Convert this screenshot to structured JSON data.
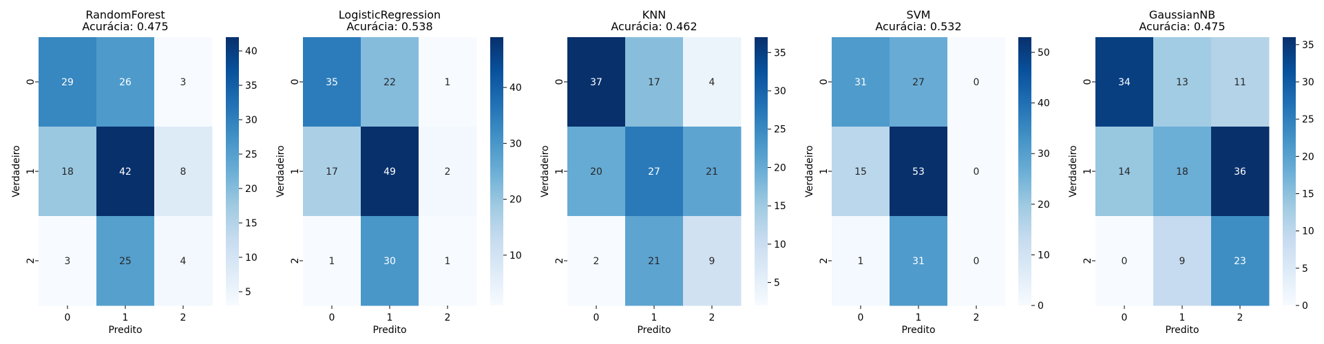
{
  "chart_data": [
    {
      "type": "heatmap",
      "title": "RandomForest",
      "subtitle": "Acurácia: 0.475",
      "xlabel": "Predito",
      "ylabel": "Verdadeiro",
      "x_categories": [
        "0",
        "1",
        "2"
      ],
      "y_categories": [
        "0",
        "1",
        "2"
      ],
      "values": [
        [
          29,
          26,
          3
        ],
        [
          18,
          42,
          8
        ],
        [
          3,
          25,
          4
        ]
      ],
      "colorbar": {
        "min": 3,
        "max": 42,
        "ticks": [
          5,
          10,
          15,
          20,
          25,
          30,
          35,
          40
        ]
      }
    },
    {
      "type": "heatmap",
      "title": "LogisticRegression",
      "subtitle": "Acurácia: 0.538",
      "xlabel": "Predito",
      "ylabel": "Verdadeiro",
      "x_categories": [
        "0",
        "1",
        "2"
      ],
      "y_categories": [
        "0",
        "1",
        "2"
      ],
      "values": [
        [
          35,
          22,
          1
        ],
        [
          17,
          49,
          2
        ],
        [
          1,
          30,
          1
        ]
      ],
      "colorbar": {
        "min": 1,
        "max": 49,
        "ticks": [
          10,
          20,
          30,
          40
        ]
      }
    },
    {
      "type": "heatmap",
      "title": "KNN",
      "subtitle": "Acurácia: 0.462",
      "xlabel": "Predito",
      "ylabel": "Verdadeiro",
      "x_categories": [
        "0",
        "1",
        "2"
      ],
      "y_categories": [
        "0",
        "1",
        "2"
      ],
      "values": [
        [
          37,
          17,
          4
        ],
        [
          20,
          27,
          21
        ],
        [
          2,
          21,
          9
        ]
      ],
      "colorbar": {
        "min": 2,
        "max": 37,
        "ticks": [
          5,
          10,
          15,
          20,
          25,
          30,
          35
        ]
      }
    },
    {
      "type": "heatmap",
      "title": "SVM",
      "subtitle": "Acurácia: 0.532",
      "xlabel": "Predito",
      "ylabel": "Verdadeiro",
      "x_categories": [
        "0",
        "1",
        "2"
      ],
      "y_categories": [
        "0",
        "1",
        "2"
      ],
      "values": [
        [
          31,
          27,
          0
        ],
        [
          15,
          53,
          0
        ],
        [
          1,
          31,
          0
        ]
      ],
      "colorbar": {
        "min": 0,
        "max": 53,
        "ticks": [
          0,
          10,
          20,
          30,
          40,
          50
        ]
      }
    },
    {
      "type": "heatmap",
      "title": "GaussianNB",
      "subtitle": "Acurácia: 0.475",
      "xlabel": "Predito",
      "ylabel": "Verdadeiro",
      "x_categories": [
        "0",
        "1",
        "2"
      ],
      "y_categories": [
        "0",
        "1",
        "2"
      ],
      "values": [
        [
          34,
          13,
          11
        ],
        [
          14,
          18,
          36
        ],
        [
          0,
          9,
          23
        ]
      ],
      "colorbar": {
        "min": 0,
        "max": 36,
        "ticks": [
          0,
          5,
          10,
          15,
          20,
          25,
          30,
          35
        ]
      }
    }
  ],
  "colormap": {
    "name": "Blues",
    "stops": [
      "#f7fbff",
      "#deebf7",
      "#c6dbef",
      "#9ecae1",
      "#6baed6",
      "#4292c6",
      "#2171b5",
      "#08519c",
      "#08306b"
    ]
  },
  "annotation_colors": {
    "light": "#262626",
    "dark": "#ffffff"
  }
}
